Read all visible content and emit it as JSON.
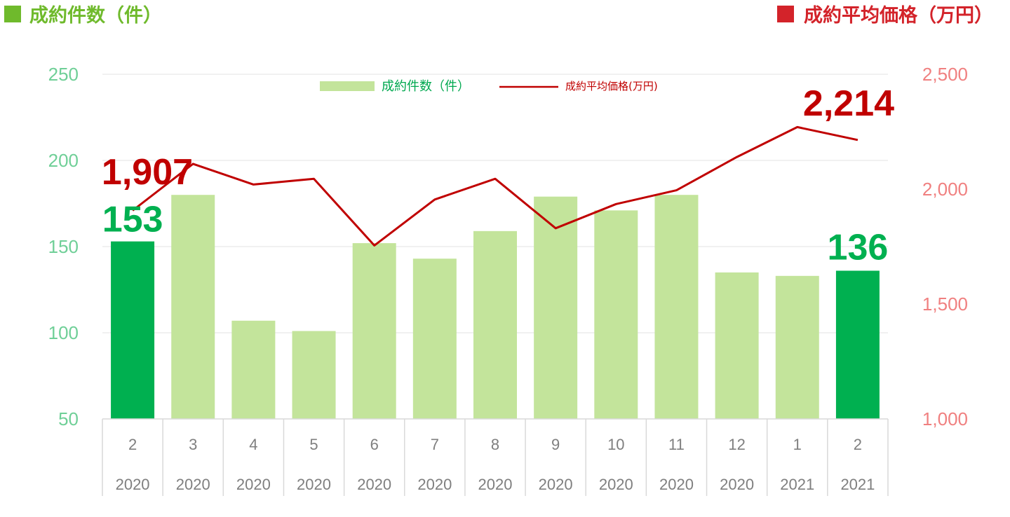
{
  "header": {
    "left_title": "成約件数（件）",
    "right_title": "成約平均価格（万円）",
    "left_marker_color": "#6fba2c",
    "right_marker_color": "#d3232a"
  },
  "legend": {
    "bar_label": "成約件数（件）",
    "line_label": "成約平均価格(万円)"
  },
  "chart_data": {
    "type": "bar",
    "categories": [
      "2",
      "3",
      "4",
      "5",
      "6",
      "7",
      "8",
      "9",
      "10",
      "11",
      "12",
      "1",
      "2"
    ],
    "years": [
      "2020",
      "2020",
      "2020",
      "2020",
      "2020",
      "2020",
      "2020",
      "2020",
      "2020",
      "2020",
      "2020",
      "2021",
      "2021"
    ],
    "series": [
      {
        "name": "成約件数（件）",
        "type": "bar",
        "axis": "left",
        "values": [
          153,
          180,
          107,
          101,
          152,
          143,
          159,
          179,
          171,
          180,
          135,
          133,
          136
        ],
        "color": "#c3e49b",
        "highlight_color": "#00b050",
        "highlight_indices": [
          0,
          12
        ]
      },
      {
        "name": "成約平均価格(万円)",
        "type": "line",
        "axis": "right",
        "values": [
          1907,
          2110,
          2020,
          2045,
          1755,
          1955,
          2045,
          1830,
          1935,
          1995,
          2140,
          2270,
          2214
        ],
        "color": "#c00000"
      }
    ],
    "left_axis": {
      "ylim": [
        50,
        250
      ],
      "ticks": [
        "50",
        "100",
        "150",
        "200",
        "250"
      ]
    },
    "right_axis": {
      "ylim": [
        1000,
        2500
      ],
      "ticks": [
        "1,000",
        "1,500",
        "2,000",
        "2,500"
      ]
    },
    "annotations": {
      "first_count": "153",
      "last_count": "136",
      "first_price": "1,907",
      "last_price": "2,214"
    },
    "grid": true,
    "legend_position": "top-center"
  }
}
